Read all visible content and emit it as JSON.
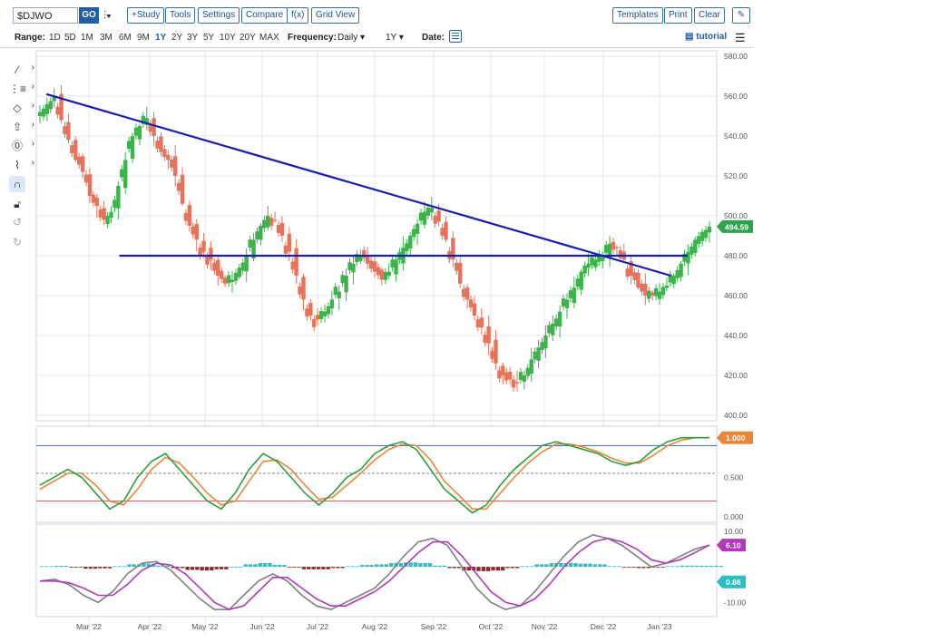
{
  "toolbar": {
    "symbol": "$DJWO",
    "go_label": "GO",
    "study_label": "+Study",
    "tools_label": "Tools",
    "settings_label": "Settings",
    "compare_label": "Compare",
    "fx_label": "f(x)",
    "gridview_label": "Grid View",
    "templates_label": "Templates",
    "print_label": "Print",
    "clear_label": "Clear"
  },
  "range_bar": {
    "range_label": "Range:",
    "ranges": [
      "1D",
      "5D",
      "1M",
      "3M",
      "6M",
      "9M",
      "1Y",
      "2Y",
      "3Y",
      "5Y",
      "10Y",
      "20Y",
      "MAX"
    ],
    "active_range": "1Y",
    "frequency_label": "Frequency:",
    "frequency_value": "Daily",
    "period_value": "1Y",
    "date_label": "Date:",
    "tutorial_label": "tutorial"
  },
  "chart_data": [
    {
      "type": "candlestick",
      "x_axis_labels": [
        "Mar '22",
        "Apr '22",
        "May '22",
        "Jun '22",
        "Jul '22",
        "Aug '22",
        "Sep '22",
        "Oct '22",
        "Nov '22",
        "Dec '22",
        "Jan '23"
      ],
      "y_ticks": [
        "580.00",
        "560.00",
        "540.00",
        "520.00",
        "500.00",
        "480.00",
        "460.00",
        "440.00",
        "420.00",
        "400.00"
      ],
      "ylim": [
        400,
        580
      ],
      "last_value": "494.59",
      "close_path": [
        552,
        556,
        560,
        548,
        538,
        528,
        522,
        510,
        505,
        498,
        502,
        515,
        528,
        540,
        545,
        549,
        540,
        532,
        528,
        520,
        506,
        495,
        488,
        482,
        478,
        470,
        466,
        468,
        474,
        480,
        488,
        495,
        500,
        498,
        490,
        482,
        470,
        458,
        450,
        448,
        452,
        458,
        462,
        470,
        476,
        480,
        476,
        472,
        468,
        472,
        478,
        484,
        490,
        496,
        502,
        504,
        497,
        488,
        478,
        466,
        458,
        450,
        444,
        436,
        426,
        420,
        418,
        416,
        420,
        428,
        434,
        440,
        446,
        452,
        458,
        464,
        472,
        476,
        478,
        480,
        486,
        484,
        478,
        470,
        464,
        460,
        460,
        462,
        465,
        470,
        476,
        482,
        488,
        492,
        494.59
      ],
      "trendlines": [
        {
          "from_month_index": 0.3,
          "from_value": 561,
          "to_month_index": 11.2,
          "to_value": 470,
          "color": "#1c1cb0"
        },
        {
          "from_month_index": 1.5,
          "from_value": 480,
          "to_month_index": 11.5,
          "to_value": 480,
          "color": "#1c1cb0"
        }
      ],
      "colors": {
        "up": "#3cb44b",
        "down": "#e8735a",
        "last_value_badge": "#2ea44f"
      }
    },
    {
      "type": "line",
      "name": "stochastic",
      "y_ticks": [
        "1.000",
        "0.500",
        "0.000"
      ],
      "ylim": [
        0,
        1.1
      ],
      "last_value": "1.000",
      "upper_band": 0.9,
      "mid_band": 0.55,
      "lower_band": 0.2,
      "fast": [
        0.4,
        0.5,
        0.6,
        0.5,
        0.3,
        0.1,
        0.2,
        0.5,
        0.7,
        0.8,
        0.6,
        0.4,
        0.2,
        0.1,
        0.3,
        0.6,
        0.8,
        0.7,
        0.5,
        0.3,
        0.15,
        0.3,
        0.5,
        0.6,
        0.8,
        0.9,
        0.95,
        0.85,
        0.6,
        0.35,
        0.2,
        0.05,
        0.15,
        0.4,
        0.6,
        0.75,
        0.9,
        0.95,
        0.9,
        0.85,
        0.8,
        0.7,
        0.65,
        0.7,
        0.85,
        0.95,
        1.0,
        1.0,
        1.0
      ],
      "slow": [
        0.35,
        0.45,
        0.55,
        0.55,
        0.4,
        0.2,
        0.15,
        0.35,
        0.6,
        0.75,
        0.68,
        0.5,
        0.3,
        0.15,
        0.2,
        0.45,
        0.7,
        0.72,
        0.6,
        0.4,
        0.22,
        0.25,
        0.4,
        0.55,
        0.72,
        0.85,
        0.92,
        0.9,
        0.72,
        0.45,
        0.28,
        0.1,
        0.1,
        0.3,
        0.5,
        0.68,
        0.82,
        0.92,
        0.92,
        0.88,
        0.82,
        0.74,
        0.68,
        0.68,
        0.78,
        0.9,
        0.97,
        1.0,
        1.0
      ],
      "colors": {
        "fast": "#2e9e3e",
        "slow": "#e8873a",
        "upper": "#4a6fd6",
        "lower": "#e85a5a",
        "badge": "#e8873a"
      }
    },
    {
      "type": "line",
      "name": "macd",
      "y_ticks": [
        "10.00",
        "-10.00"
      ],
      "ylim": [
        -14,
        12
      ],
      "last_values": [
        "6.10",
        "0.86"
      ],
      "macd": [
        -4,
        -3.5,
        -5,
        -8,
        -10,
        -7,
        -2,
        1,
        1.5,
        -1,
        -5,
        -9,
        -12,
        -12,
        -8,
        -4,
        -2,
        -4,
        -8,
        -11,
        -12,
        -10,
        -8,
        -6,
        -2,
        3,
        7,
        8,
        6,
        0,
        -6,
        -10,
        -12,
        -11,
        -7,
        -2,
        3,
        7,
        9,
        8,
        6,
        3,
        0,
        1,
        3,
        5,
        6.1
      ],
      "signal": [
        -4,
        -4,
        -4.5,
        -6,
        -8,
        -8,
        -5,
        -1,
        1,
        0.5,
        -2,
        -6,
        -10,
        -12,
        -11,
        -7,
        -3,
        -3,
        -6,
        -9,
        -11,
        -11,
        -9,
        -7,
        -4,
        0,
        4,
        7,
        7,
        3,
        -2,
        -7,
        -10,
        -11,
        -9,
        -5,
        0,
        4,
        7,
        8,
        7,
        5,
        2,
        1,
        2,
        4,
        6.1
      ],
      "histogram": [
        0.5,
        0.8,
        -0.5,
        -1.5,
        -1.2,
        0.5,
        2,
        2.5,
        1,
        -1,
        -2.5,
        -3,
        -2,
        0,
        2,
        3,
        1.5,
        -0.5,
        -2,
        -2,
        -1,
        0.5,
        1.5,
        2,
        3,
        3.5,
        3,
        1,
        -1,
        -3,
        -3.5,
        -3,
        -1,
        0.5,
        2,
        3,
        3,
        2.5,
        2,
        0.5,
        -0.5,
        -1,
        -0.5,
        0.5,
        1,
        0.9,
        0.86
      ],
      "colors": {
        "macd": "#808080",
        "signal": "#b03ab8",
        "hist_up": "#2bbfc4",
        "hist_down": "#8b2a2a",
        "badge_macd": "#b03ab8",
        "badge_hist": "#2bbfc4"
      }
    }
  ]
}
